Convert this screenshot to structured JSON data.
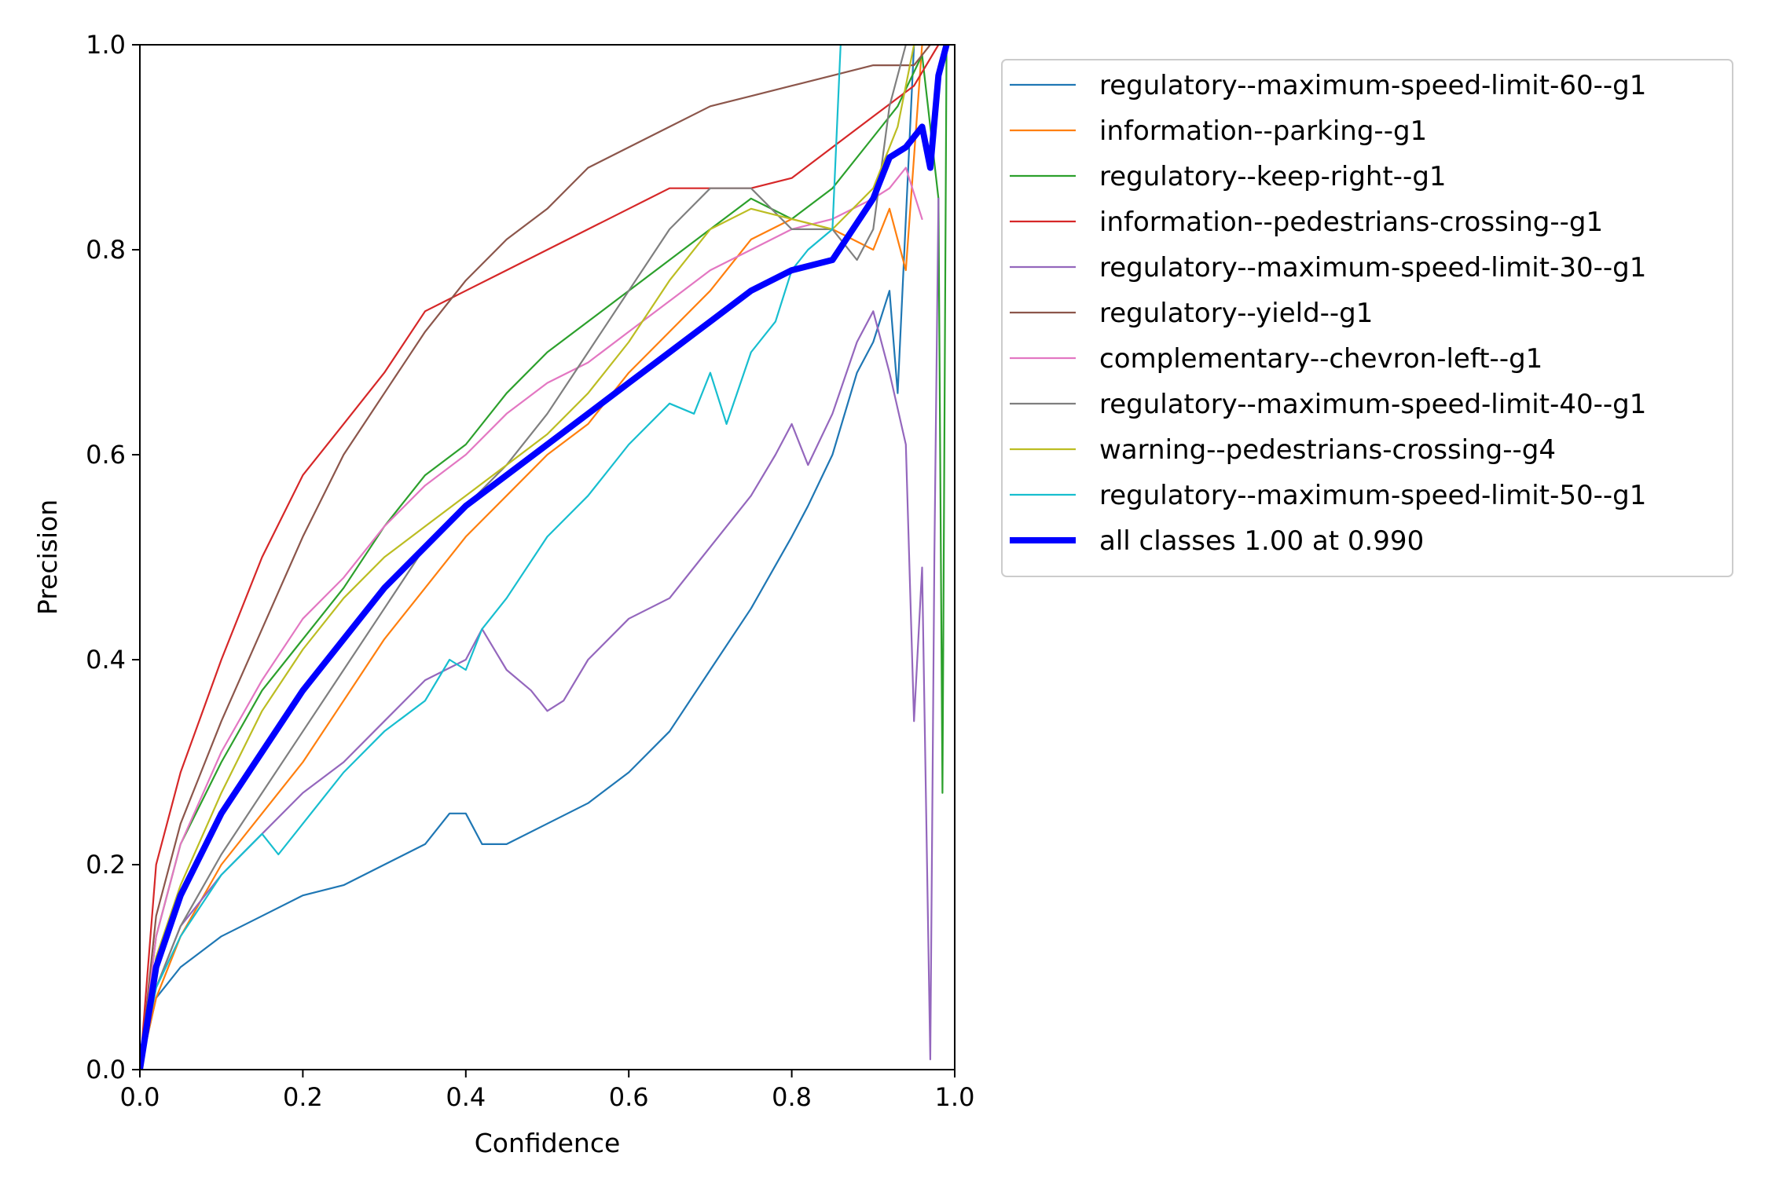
{
  "chart_data": {
    "type": "line",
    "title": "",
    "xlabel": "Confidence",
    "ylabel": "Precision",
    "xlim": [
      0,
      1
    ],
    "ylim": [
      0,
      1
    ],
    "xticks": [
      "0.0",
      "0.2",
      "0.4",
      "0.6",
      "0.8",
      "1.0"
    ],
    "yticks": [
      "0.0",
      "0.2",
      "0.4",
      "0.6",
      "0.8",
      "1.0"
    ],
    "grid": false,
    "legend_position": "outside-top-right",
    "series": [
      {
        "name": "regulatory--maximum-speed-limit-60--g1",
        "color": "#1f77b4",
        "width": "thin",
        "x": [
          0.0,
          0.02,
          0.05,
          0.1,
          0.15,
          0.2,
          0.25,
          0.3,
          0.35,
          0.38,
          0.4,
          0.42,
          0.45,
          0.5,
          0.55,
          0.6,
          0.65,
          0.7,
          0.75,
          0.8,
          0.82,
          0.85,
          0.88,
          0.9,
          0.92,
          0.93,
          0.95
        ],
        "y": [
          0.0,
          0.07,
          0.1,
          0.13,
          0.15,
          0.17,
          0.18,
          0.2,
          0.22,
          0.25,
          0.25,
          0.22,
          0.22,
          0.24,
          0.26,
          0.29,
          0.33,
          0.39,
          0.45,
          0.52,
          0.55,
          0.6,
          0.68,
          0.71,
          0.76,
          0.66,
          1.0
        ]
      },
      {
        "name": "information--parking--g1",
        "color": "#ff7f0e",
        "width": "thin",
        "x": [
          0.0,
          0.02,
          0.05,
          0.1,
          0.15,
          0.2,
          0.25,
          0.3,
          0.35,
          0.4,
          0.45,
          0.5,
          0.55,
          0.6,
          0.65,
          0.7,
          0.75,
          0.8,
          0.85,
          0.9,
          0.92,
          0.94,
          0.96,
          0.97
        ],
        "y": [
          0.0,
          0.07,
          0.13,
          0.2,
          0.25,
          0.3,
          0.36,
          0.42,
          0.47,
          0.52,
          0.56,
          0.6,
          0.63,
          0.68,
          0.72,
          0.76,
          0.81,
          0.83,
          0.82,
          0.8,
          0.84,
          0.78,
          1.0,
          1.0
        ]
      },
      {
        "name": "regulatory--keep-right--g1",
        "color": "#2ca02c",
        "width": "thin",
        "x": [
          0.0,
          0.02,
          0.05,
          0.1,
          0.15,
          0.2,
          0.25,
          0.3,
          0.35,
          0.4,
          0.45,
          0.5,
          0.55,
          0.6,
          0.65,
          0.7,
          0.75,
          0.8,
          0.85,
          0.9,
          0.93,
          0.96,
          0.98,
          0.985,
          0.99
        ],
        "y": [
          0.0,
          0.13,
          0.22,
          0.3,
          0.37,
          0.42,
          0.47,
          0.53,
          0.58,
          0.61,
          0.66,
          0.7,
          0.73,
          0.76,
          0.79,
          0.82,
          0.85,
          0.83,
          0.86,
          0.91,
          0.94,
          0.99,
          0.85,
          0.27,
          1.0
        ]
      },
      {
        "name": "information--pedestrians-crossing--g1",
        "color": "#d62728",
        "width": "thin",
        "x": [
          0.0,
          0.02,
          0.05,
          0.1,
          0.15,
          0.2,
          0.25,
          0.3,
          0.35,
          0.4,
          0.45,
          0.5,
          0.55,
          0.6,
          0.65,
          0.7,
          0.75,
          0.8,
          0.85,
          0.9,
          0.95,
          0.98
        ],
        "y": [
          0.0,
          0.2,
          0.29,
          0.4,
          0.5,
          0.58,
          0.63,
          0.68,
          0.74,
          0.76,
          0.78,
          0.8,
          0.82,
          0.84,
          0.86,
          0.86,
          0.86,
          0.87,
          0.9,
          0.93,
          0.96,
          1.0
        ]
      },
      {
        "name": "regulatory--maximum-speed-limit-30--g1",
        "color": "#9467bd",
        "width": "thin",
        "x": [
          0.0,
          0.02,
          0.05,
          0.1,
          0.15,
          0.2,
          0.25,
          0.3,
          0.35,
          0.4,
          0.42,
          0.45,
          0.48,
          0.5,
          0.52,
          0.55,
          0.6,
          0.65,
          0.7,
          0.75,
          0.78,
          0.8,
          0.82,
          0.85,
          0.88,
          0.9,
          0.92,
          0.94,
          0.95,
          0.96,
          0.97,
          0.975,
          0.98
        ],
        "y": [
          0.0,
          0.08,
          0.14,
          0.19,
          0.23,
          0.27,
          0.3,
          0.34,
          0.38,
          0.4,
          0.43,
          0.39,
          0.37,
          0.35,
          0.36,
          0.4,
          0.44,
          0.46,
          0.51,
          0.56,
          0.6,
          0.63,
          0.59,
          0.64,
          0.71,
          0.74,
          0.68,
          0.61,
          0.34,
          0.49,
          0.01,
          0.5,
          0.85
        ]
      },
      {
        "name": "regulatory--yield--g1",
        "color": "#8c564b",
        "width": "thin",
        "x": [
          0.0,
          0.02,
          0.05,
          0.1,
          0.15,
          0.2,
          0.25,
          0.3,
          0.35,
          0.4,
          0.45,
          0.5,
          0.55,
          0.6,
          0.65,
          0.7,
          0.75,
          0.8,
          0.85,
          0.9,
          0.95,
          0.97
        ],
        "y": [
          0.0,
          0.15,
          0.24,
          0.34,
          0.43,
          0.52,
          0.6,
          0.66,
          0.72,
          0.77,
          0.81,
          0.84,
          0.88,
          0.9,
          0.92,
          0.94,
          0.95,
          0.96,
          0.97,
          0.98,
          0.98,
          1.0
        ]
      },
      {
        "name": "complementary--chevron-left--g1",
        "color": "#e377c2",
        "width": "thin",
        "x": [
          0.0,
          0.02,
          0.05,
          0.1,
          0.15,
          0.2,
          0.25,
          0.3,
          0.35,
          0.4,
          0.45,
          0.5,
          0.55,
          0.6,
          0.65,
          0.7,
          0.75,
          0.8,
          0.85,
          0.9,
          0.92,
          0.94,
          0.96
        ],
        "y": [
          0.0,
          0.13,
          0.22,
          0.31,
          0.38,
          0.44,
          0.48,
          0.53,
          0.57,
          0.6,
          0.64,
          0.67,
          0.69,
          0.72,
          0.75,
          0.78,
          0.8,
          0.82,
          0.83,
          0.85,
          0.86,
          0.88,
          0.83
        ]
      },
      {
        "name": "regulatory--maximum-speed-limit-40--g1",
        "color": "#7f7f7f",
        "width": "thin",
        "x": [
          0.0,
          0.02,
          0.05,
          0.1,
          0.15,
          0.2,
          0.25,
          0.3,
          0.35,
          0.4,
          0.45,
          0.5,
          0.55,
          0.6,
          0.65,
          0.7,
          0.75,
          0.8,
          0.85,
          0.88,
          0.9,
          0.92,
          0.94,
          0.96
        ],
        "y": [
          0.0,
          0.08,
          0.14,
          0.21,
          0.27,
          0.33,
          0.39,
          0.45,
          0.51,
          0.55,
          0.59,
          0.64,
          0.7,
          0.76,
          0.82,
          0.86,
          0.86,
          0.82,
          0.82,
          0.79,
          0.82,
          0.94,
          1.0,
          1.0
        ]
      },
      {
        "name": "warning--pedestrians-crossing--g4",
        "color": "#bcbd22",
        "width": "thin",
        "x": [
          0.0,
          0.02,
          0.05,
          0.1,
          0.15,
          0.2,
          0.25,
          0.3,
          0.35,
          0.4,
          0.45,
          0.5,
          0.55,
          0.6,
          0.65,
          0.7,
          0.75,
          0.8,
          0.85,
          0.9,
          0.93,
          0.95
        ],
        "y": [
          0.0,
          0.11,
          0.18,
          0.27,
          0.35,
          0.41,
          0.46,
          0.5,
          0.53,
          0.56,
          0.59,
          0.62,
          0.66,
          0.71,
          0.77,
          0.82,
          0.84,
          0.83,
          0.82,
          0.86,
          0.92,
          1.0
        ]
      },
      {
        "name": "regulatory--maximum-speed-limit-50--g1",
        "color": "#17becf",
        "width": "thin",
        "x": [
          0.0,
          0.02,
          0.05,
          0.1,
          0.15,
          0.17,
          0.2,
          0.25,
          0.3,
          0.35,
          0.38,
          0.4,
          0.42,
          0.45,
          0.5,
          0.55,
          0.6,
          0.65,
          0.68,
          0.7,
          0.72,
          0.75,
          0.78,
          0.8,
          0.82,
          0.85,
          0.86
        ],
        "y": [
          0.0,
          0.08,
          0.13,
          0.19,
          0.23,
          0.21,
          0.24,
          0.29,
          0.33,
          0.36,
          0.4,
          0.39,
          0.43,
          0.46,
          0.52,
          0.56,
          0.61,
          0.65,
          0.64,
          0.68,
          0.63,
          0.7,
          0.73,
          0.78,
          0.8,
          0.82,
          1.0
        ]
      },
      {
        "name": "all classes 1.00 at 0.990",
        "color": "#0000ff",
        "width": "thick",
        "x": [
          0.0,
          0.02,
          0.05,
          0.1,
          0.15,
          0.2,
          0.25,
          0.3,
          0.35,
          0.4,
          0.45,
          0.5,
          0.55,
          0.6,
          0.65,
          0.7,
          0.75,
          0.8,
          0.85,
          0.9,
          0.92,
          0.94,
          0.96,
          0.97,
          0.98,
          0.99
        ],
        "y": [
          0.0,
          0.1,
          0.17,
          0.25,
          0.31,
          0.37,
          0.42,
          0.47,
          0.51,
          0.55,
          0.58,
          0.61,
          0.64,
          0.67,
          0.7,
          0.73,
          0.76,
          0.78,
          0.79,
          0.85,
          0.89,
          0.9,
          0.92,
          0.88,
          0.97,
          1.0
        ]
      }
    ]
  }
}
